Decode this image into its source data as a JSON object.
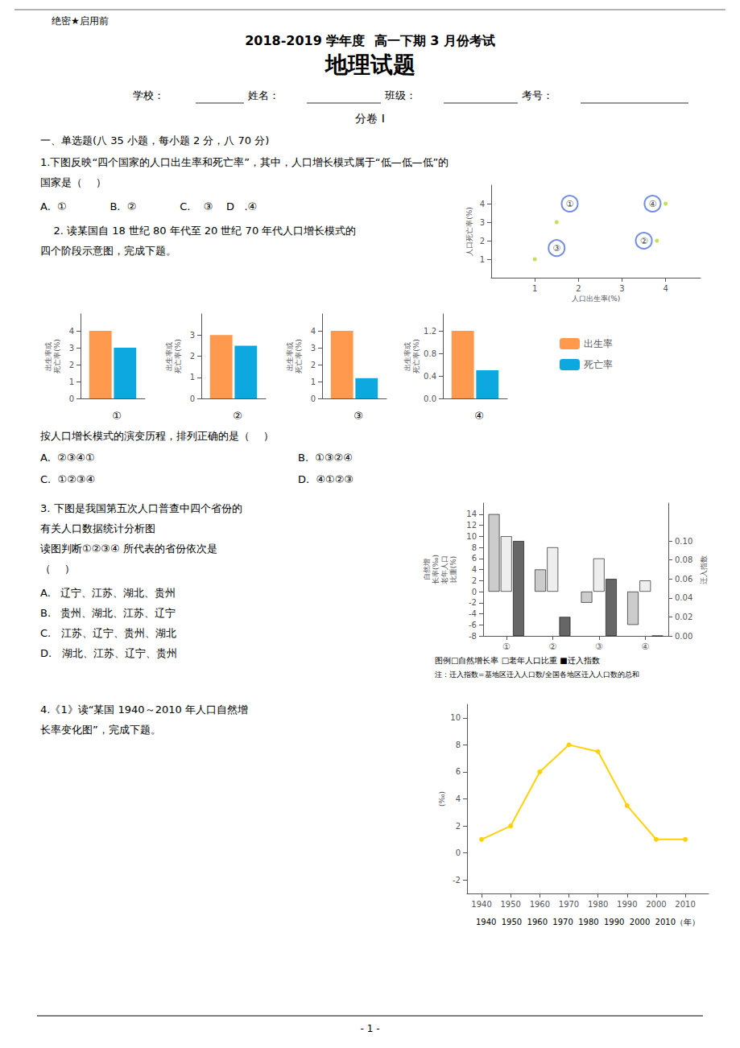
{
  "title": "地理试题",
  "subtitle": "2018-2019 学年度  高一下期 3 月份考试",
  "annotations": [
    "绝密★启用前",
    "学校：",
    "姓名：",
    "班级：",
    "考号：",
    "分卷 I",
    "一、单选题(八 35 小题，每小题 2 分，八 70 分)",
    "1.下图反映“四个国家的人口出生率和死亡率”，其中，人口增长模式属于“低—低—低”的",
    "国家是（    ）",
    "A.  ①             B.  ②             C.    ③    D   .④",
    "    2. 读某国自 18 世纪 80 年代至 20 世纪 70 年代人口增长模式的",
    "四个阶段示意图，完成下题。",
    "按人口增长模式的演变历程，排列正确的是（    ）",
    "A.  ②③④①",
    "B.  ①③②④",
    "C.  ①②③④",
    "D.  ④①②③",
    "3. 下图是我国第五次人口普查中四个省份的",
    "有关人口数据统计分析图",
    "读图判断①②③④ 所代表的省份依次是",
    "（    ）",
    "A.   辽宁、江苏、湖北、贵州",
    "B.   贵州、湖北、江苏、辽宁",
    "C.   江苏、辽宁、贵州、湖北",
    "D.   湖北、江苏、辽宁、贵州",
    "4.《1》读“某国 1940～2010 年人口自然增",
    "长率变化图”，完成下题。",
    "- 1 -"
  ],
  "chart_data": [
    {
      "type": "scatter",
      "xlabel": "人口出生率(%)",
      "ylabel": "人口死亡率(%)",
      "xlim": [
        0,
        4.8
      ],
      "ylim": [
        0,
        5.0
      ],
      "xticks": [
        1.0,
        2.0,
        3.0,
        4.0
      ],
      "yticks": [
        1.0,
        2.0,
        3.0,
        4.0
      ],
      "grid": false,
      "series": [
        {
          "marker": "circle",
          "x": [
            1.8,
            3.7,
            3.5,
            1.5
          ],
          "values": [
            4.0,
            4.0,
            2.0,
            1.6
          ]
        },
        {
          "marker": "dot",
          "x": [
            1.5,
            1.0,
            4.0,
            3.8
          ],
          "values": [
            3.0,
            1.0,
            4.0,
            2.0
          ]
        }
      ],
      "annotations": [
        {
          "text": "①",
          "x": 1.8,
          "y": 4.0
        },
        {
          "text": "④",
          "x": 3.7,
          "y": 4.0
        },
        {
          "text": "②",
          "x": 3.5,
          "y": 2.0
        },
        {
          "text": "③",
          "x": 1.5,
          "y": 1.6
        }
      ]
    },
    {
      "type": "bar",
      "title": "①",
      "ylabel": "出生率或\n死亡率(%)",
      "categories": [
        null
      ],
      "series": [
        {
          "name": "出生率",
          "values": [
            4.0
          ]
        },
        {
          "name": "死亡率",
          "values": [
            3.0
          ]
        }
      ],
      "ylim": [
        0,
        5
      ],
      "yticks": [
        0,
        1,
        2,
        3,
        4
      ],
      "grid": false,
      "legend": "right",
      "tick_labels": "y"
    },
    {
      "type": "bar",
      "title": "②",
      "ylabel": "出生率或\n死亡率(%)",
      "categories": [
        null
      ],
      "series": [
        {
          "name": "出生率",
          "values": [
            3.0
          ]
        },
        {
          "name": "死亡率",
          "values": [
            2.5
          ]
        }
      ],
      "ylim": [
        0,
        4
      ],
      "yticks": [
        0,
        1,
        2,
        3
      ],
      "grid": false,
      "legend": "right",
      "tick_labels": "y"
    },
    {
      "type": "bar",
      "title": "③",
      "ylabel": "出生率或\n死亡率(%)",
      "categories": [
        null
      ],
      "series": [
        {
          "name": "出生率",
          "values": [
            4.0
          ]
        },
        {
          "name": "死亡率",
          "values": [
            1.2
          ]
        }
      ],
      "ylim": [
        0,
        5
      ],
      "yticks": [
        0,
        1,
        2,
        3,
        4
      ],
      "grid": false,
      "legend": "right",
      "tick_labels": "y"
    },
    {
      "type": "bar",
      "title": "④",
      "ylabel": "出生率或\n死亡率(%)",
      "categories": [
        null
      ],
      "series": [
        {
          "name": "出生率",
          "values": [
            1.2
          ]
        },
        {
          "name": "死亡率",
          "values": [
            0.5
          ]
        }
      ],
      "ylim": [
        0,
        1.5
      ],
      "yticks": [
        {
          "value": 0,
          "label": "0.0"
        },
        0.4,
        0.8,
        1.2
      ],
      "grid": false,
      "legend": "right",
      "tick_labels": "y"
    },
    {
      "type": "bar",
      "categories": [
        "①",
        "②",
        "③",
        "④"
      ],
      "ylabel": "自然增\n长率(‰)\n老年人口\n比重(%)",
      "y2label": "迁入指数",
      "ylim": [
        -8,
        16
      ],
      "yticks": [
        -8,
        -6,
        -4,
        -2,
        0,
        2,
        4,
        6,
        8,
        10,
        12,
        14
      ],
      "y2lim": [
        0,
        0.14
      ],
      "y2ticks": [
        {
          "value": 0,
          "label": "0.00"
        },
        0.02,
        0.04,
        0.06,
        0.08,
        {
          "value": 0.1,
          "label": "0.10"
        }
      ],
      "grid": false,
      "series": [
        {
          "color": "#cccccc",
          "values": [
            14,
            4,
            -2,
            -6
          ]
        },
        {
          "color": "#eeeeee",
          "values": [
            10,
            8,
            6,
            2
          ]
        },
        {
          "color": "#666666",
          "values": [
            0.1,
            0.02,
            0.06,
            0.0
          ],
          "axis": "y2"
        }
      ],
      "annotations": [
        "图例□自然增长率 □老年人口比重 ■迁入指数",
        "注：迁入指数=基地区迁入人口数/全国各地区迁入人口数的总和"
      ]
    },
    {
      "type": "line",
      "ylabel": "(‰)",
      "x": [
        1940,
        1950,
        1960,
        1970,
        1980,
        1990,
        2000,
        2010
      ],
      "values": [
        1.0,
        2.0,
        6.0,
        8.0,
        7.5,
        3.5,
        1.0,
        1.0
      ],
      "xlim": [
        1935,
        2018
      ],
      "ylim": [
        -3,
        11
      ],
      "xticks": [
        1940,
        1950,
        1960,
        1970,
        1980,
        1990,
        2000,
        2010
      ],
      "yticks": [
        -2,
        0,
        2,
        4,
        6,
        8,
        10
      ],
      "marker": "circle",
      "grid": false,
      "annotations": [
        "1940  1950  1960  1970  1980  1990  2000  2010（年）"
      ]
    }
  ]
}
